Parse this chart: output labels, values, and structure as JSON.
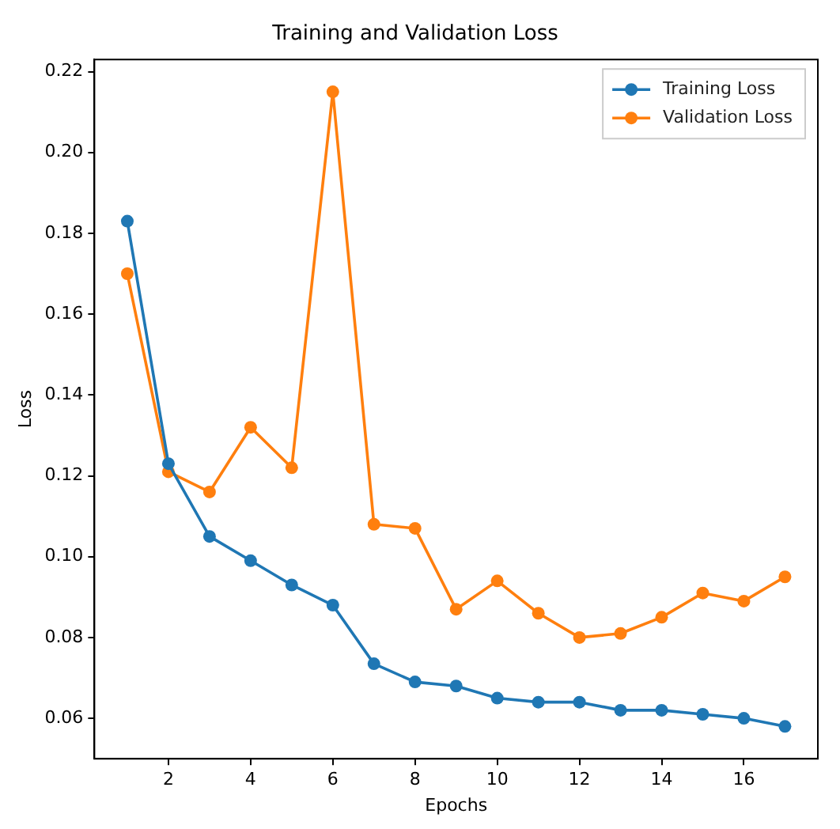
{
  "chart_data": {
    "type": "line",
    "title": "Training and Validation Loss",
    "xlabel": "Epochs",
    "ylabel": "Loss",
    "x": [
      1,
      2,
      3,
      4,
      5,
      6,
      7,
      8,
      9,
      10,
      11,
      12,
      13,
      14,
      15,
      16,
      17
    ],
    "series": [
      {
        "name": "Training Loss",
        "color": "#1f77b4",
        "values": [
          0.183,
          0.123,
          0.105,
          0.099,
          0.093,
          0.088,
          0.0735,
          0.069,
          0.068,
          0.065,
          0.064,
          0.064,
          0.062,
          0.062,
          0.061,
          0.06,
          0.058
        ]
      },
      {
        "name": "Validation Loss",
        "color": "#ff7f0e",
        "values": [
          0.17,
          0.121,
          0.116,
          0.132,
          0.122,
          0.215,
          0.108,
          0.107,
          0.087,
          0.094,
          0.086,
          0.08,
          0.081,
          0.085,
          0.091,
          0.089,
          0.095
        ]
      }
    ],
    "xlim": [
      0.2,
      17.8
    ],
    "xticks": [
      2,
      4,
      6,
      8,
      10,
      12,
      14,
      16
    ],
    "ylim": [
      0.05,
      0.223
    ],
    "yticks": [
      0.06,
      0.08,
      {
        "value": 0.1,
        "label": "0.10"
      },
      0.12,
      0.14,
      0.16,
      0.18,
      {
        "value": 0.2,
        "label": "0.20"
      },
      0.22
    ],
    "grid": false,
    "legend": "top right",
    "marker": "circle",
    "line_style": "solid"
  }
}
